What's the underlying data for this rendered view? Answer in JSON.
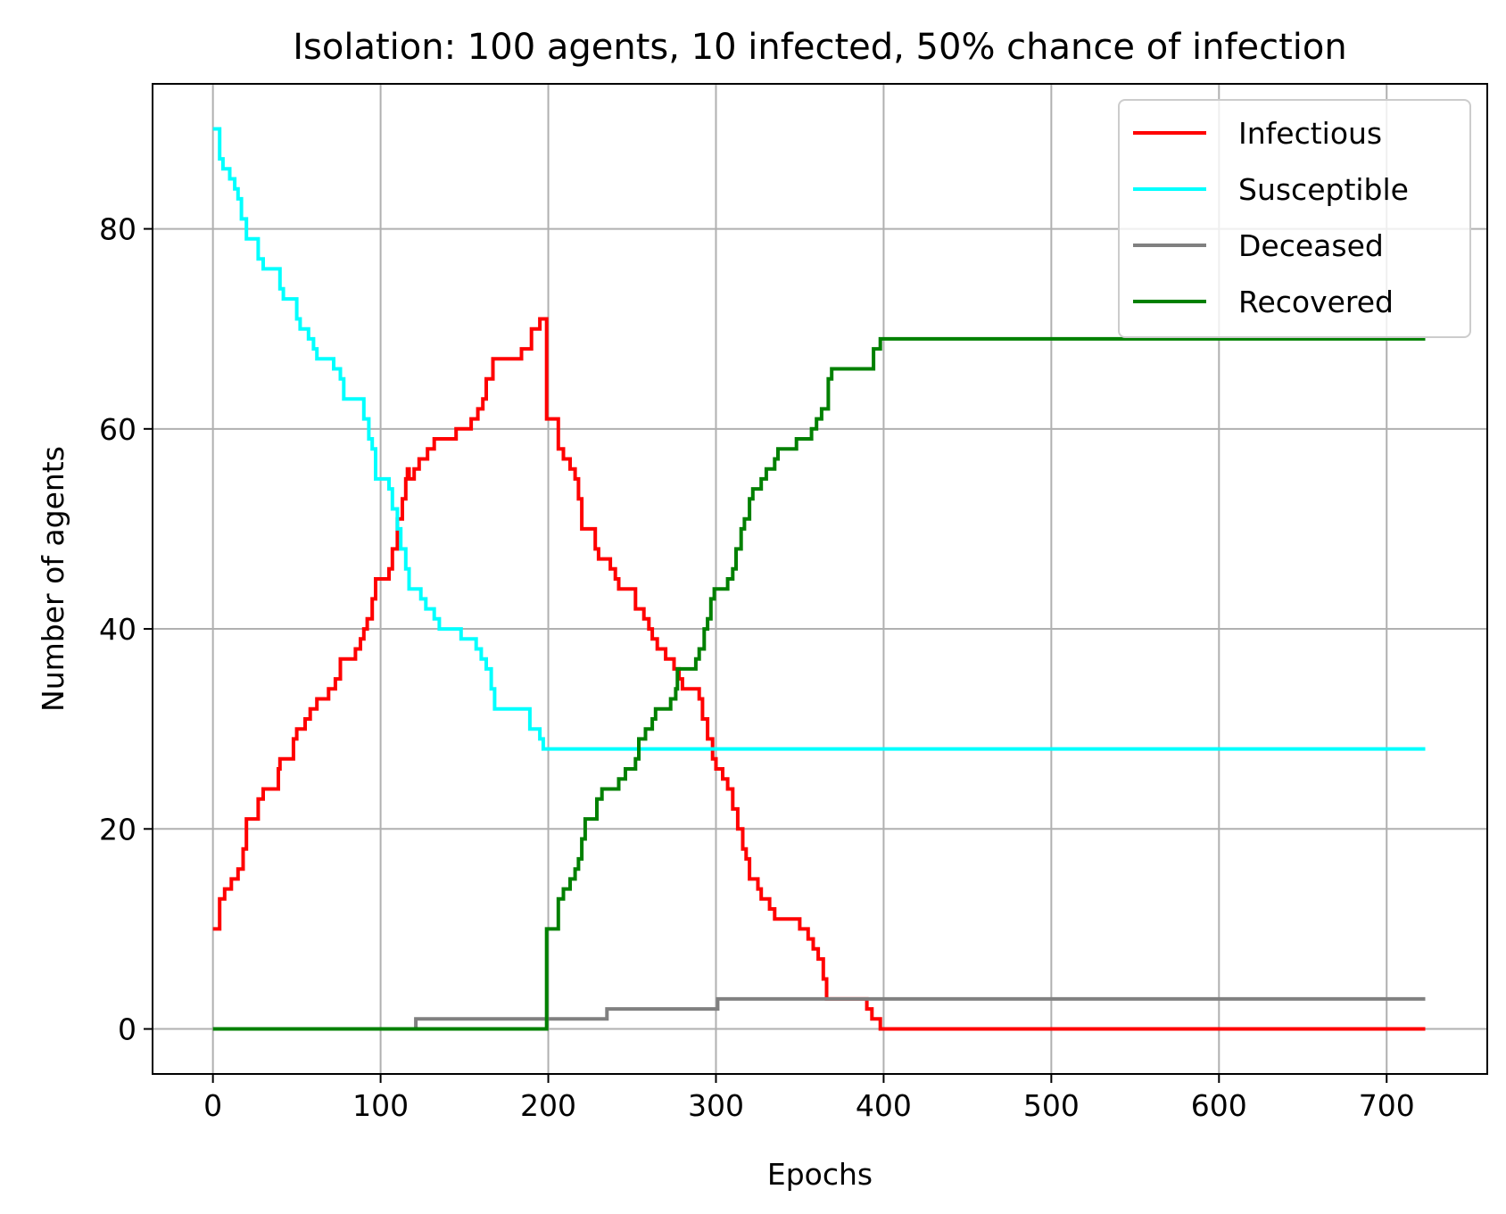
{
  "chart_data": {
    "type": "line",
    "title": "Isolation: 100 agents, 10 infected, 50% chance of infection",
    "xlabel": "Epochs",
    "ylabel": "Number of agents",
    "xlim": [
      -36,
      760
    ],
    "ylim": [
      -4.5,
      94.5
    ],
    "xticks": [
      0,
      100,
      200,
      300,
      400,
      500,
      600,
      700
    ],
    "yticks": [
      0,
      20,
      40,
      60,
      80
    ],
    "grid": true,
    "legend_position": "top-right",
    "series": [
      {
        "name": "Infectious",
        "color": "#ff0000",
        "points": [
          [
            0,
            10
          ],
          [
            3,
            10
          ],
          [
            4,
            13
          ],
          [
            7,
            14
          ],
          [
            11,
            15
          ],
          [
            15,
            16
          ],
          [
            18,
            18
          ],
          [
            20,
            21
          ],
          [
            25,
            21
          ],
          [
            27,
            23
          ],
          [
            30,
            24
          ],
          [
            37,
            24
          ],
          [
            39,
            26
          ],
          [
            40,
            27
          ],
          [
            46,
            27
          ],
          [
            48,
            29
          ],
          [
            50,
            30
          ],
          [
            55,
            31
          ],
          [
            58,
            32
          ],
          [
            62,
            33
          ],
          [
            69,
            34
          ],
          [
            73,
            35
          ],
          [
            76,
            37
          ],
          [
            85,
            38
          ],
          [
            88,
            39
          ],
          [
            90,
            40
          ],
          [
            92,
            41
          ],
          [
            95,
            43
          ],
          [
            97,
            45
          ],
          [
            103,
            45
          ],
          [
            105,
            46
          ],
          [
            107,
            48
          ],
          [
            110,
            51
          ],
          [
            113,
            53
          ],
          [
            115,
            55
          ],
          [
            116,
            56
          ],
          [
            117,
            55
          ],
          [
            120,
            56
          ],
          [
            123,
            57
          ],
          [
            128,
            58
          ],
          [
            132,
            59
          ],
          [
            142,
            59
          ],
          [
            145,
            60
          ],
          [
            152,
            60
          ],
          [
            154,
            61
          ],
          [
            158,
            62
          ],
          [
            161,
            63
          ],
          [
            163,
            65
          ],
          [
            167,
            67
          ],
          [
            182,
            67
          ],
          [
            184,
            68
          ],
          [
            188,
            68
          ],
          [
            190,
            70
          ],
          [
            194,
            70
          ],
          [
            195,
            71
          ],
          [
            198,
            71
          ],
          [
            199,
            61
          ],
          [
            204,
            61
          ],
          [
            206,
            58
          ],
          [
            209,
            57
          ],
          [
            213,
            56
          ],
          [
            216,
            55
          ],
          [
            218,
            53
          ],
          [
            220,
            50
          ],
          [
            225,
            50
          ],
          [
            228,
            48
          ],
          [
            230,
            47
          ],
          [
            234,
            47
          ],
          [
            237,
            46
          ],
          [
            240,
            45
          ],
          [
            242,
            44
          ],
          [
            249,
            44
          ],
          [
            252,
            42
          ],
          [
            257,
            41
          ],
          [
            260,
            40
          ],
          [
            262,
            39
          ],
          [
            265,
            38
          ],
          [
            270,
            37
          ],
          [
            275,
            36
          ],
          [
            278,
            35
          ],
          [
            280,
            34
          ],
          [
            288,
            34
          ],
          [
            290,
            33
          ],
          [
            292,
            31
          ],
          [
            295,
            29
          ],
          [
            298,
            27
          ],
          [
            300,
            26
          ],
          [
            304,
            25
          ],
          [
            307,
            24
          ],
          [
            310,
            22
          ],
          [
            313,
            20
          ],
          [
            316,
            18
          ],
          [
            318,
            17
          ],
          [
            320,
            15
          ],
          [
            325,
            14
          ],
          [
            327,
            13
          ],
          [
            332,
            12
          ],
          [
            335,
            11
          ],
          [
            347,
            11
          ],
          [
            350,
            10
          ],
          [
            355,
            9
          ],
          [
            358,
            8
          ],
          [
            361,
            7
          ],
          [
            364,
            5
          ],
          [
            366,
            3
          ],
          [
            372,
            3
          ],
          [
            375,
            3
          ],
          [
            390,
            2
          ],
          [
            393,
            1
          ],
          [
            398,
            0
          ],
          [
            723,
            0
          ]
        ]
      },
      {
        "name": "Susceptible",
        "color": "#00ffff",
        "points": [
          [
            0,
            90
          ],
          [
            3,
            90
          ],
          [
            4,
            87
          ],
          [
            6,
            86
          ],
          [
            10,
            85
          ],
          [
            13,
            84
          ],
          [
            15,
            83
          ],
          [
            17,
            81
          ],
          [
            20,
            79
          ],
          [
            25,
            79
          ],
          [
            27,
            77
          ],
          [
            30,
            76
          ],
          [
            37,
            76
          ],
          [
            40,
            74
          ],
          [
            42,
            73
          ],
          [
            48,
            73
          ],
          [
            50,
            71
          ],
          [
            52,
            70
          ],
          [
            57,
            69
          ],
          [
            60,
            68
          ],
          [
            62,
            67
          ],
          [
            70,
            67
          ],
          [
            72,
            66
          ],
          [
            76,
            65
          ],
          [
            78,
            63
          ],
          [
            88,
            63
          ],
          [
            90,
            61
          ],
          [
            93,
            59
          ],
          [
            95,
            58
          ],
          [
            97,
            55
          ],
          [
            103,
            55
          ],
          [
            105,
            54
          ],
          [
            107,
            52
          ],
          [
            110,
            50
          ],
          [
            112,
            48
          ],
          [
            115,
            46
          ],
          [
            117,
            44
          ],
          [
            122,
            44
          ],
          [
            124,
            43
          ],
          [
            127,
            42
          ],
          [
            132,
            41
          ],
          [
            135,
            40
          ],
          [
            146,
            40
          ],
          [
            148,
            39
          ],
          [
            155,
            39
          ],
          [
            157,
            38
          ],
          [
            160,
            37
          ],
          [
            163,
            36
          ],
          [
            166,
            34
          ],
          [
            168,
            32
          ],
          [
            187,
            32
          ],
          [
            189,
            30
          ],
          [
            195,
            29
          ],
          [
            197,
            28
          ],
          [
            723,
            28
          ]
        ]
      },
      {
        "name": "Deceased",
        "color": "#808080",
        "points": [
          [
            0,
            0
          ],
          [
            120,
            0
          ],
          [
            121,
            1
          ],
          [
            234,
            1
          ],
          [
            235,
            2
          ],
          [
            300,
            2
          ],
          [
            301,
            3
          ],
          [
            723,
            3
          ]
        ]
      },
      {
        "name": "Recovered",
        "color": "#008000",
        "points": [
          [
            0,
            0
          ],
          [
            198,
            0
          ],
          [
            199,
            10
          ],
          [
            204,
            10
          ],
          [
            206,
            13
          ],
          [
            209,
            14
          ],
          [
            213,
            15
          ],
          [
            216,
            16
          ],
          [
            218,
            17
          ],
          [
            220,
            19
          ],
          [
            222,
            21
          ],
          [
            227,
            21
          ],
          [
            229,
            23
          ],
          [
            232,
            24
          ],
          [
            240,
            24
          ],
          [
            242,
            25
          ],
          [
            246,
            26
          ],
          [
            252,
            27
          ],
          [
            254,
            29
          ],
          [
            258,
            30
          ],
          [
            262,
            31
          ],
          [
            264,
            32
          ],
          [
            270,
            32
          ],
          [
            273,
            33
          ],
          [
            276,
            34
          ],
          [
            277,
            36
          ],
          [
            285,
            36
          ],
          [
            288,
            37
          ],
          [
            290,
            38
          ],
          [
            293,
            40
          ],
          [
            295,
            41
          ],
          [
            297,
            43
          ],
          [
            299,
            44
          ],
          [
            305,
            44
          ],
          [
            307,
            45
          ],
          [
            310,
            46
          ],
          [
            312,
            48
          ],
          [
            315,
            50
          ],
          [
            317,
            51
          ],
          [
            320,
            53
          ],
          [
            322,
            54
          ],
          [
            327,
            55
          ],
          [
            330,
            56
          ],
          [
            335,
            57
          ],
          [
            337,
            58
          ],
          [
            345,
            58
          ],
          [
            348,
            59
          ],
          [
            355,
            59
          ],
          [
            357,
            60
          ],
          [
            360,
            61
          ],
          [
            363,
            62
          ],
          [
            367,
            65
          ],
          [
            369,
            66
          ],
          [
            392,
            66
          ],
          [
            394,
            68
          ],
          [
            398,
            69
          ],
          [
            723,
            69
          ]
        ]
      }
    ]
  }
}
